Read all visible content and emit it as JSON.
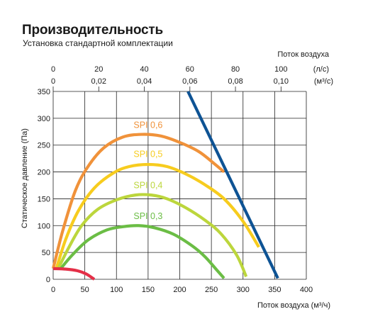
{
  "header": {
    "title": "Производительность",
    "subtitle": "Установка стандартной комплектации"
  },
  "chart_data": {
    "type": "line",
    "title": "Производительность",
    "subtitle": "Установка стандартной комплектации",
    "xlabel": "Поток воздуха (м³/ч)",
    "ylabel": "Статическое давление (Па)",
    "top_axis_label": "Поток воздуха",
    "xlim": [
      0,
      400
    ],
    "ylim": [
      0,
      350
    ],
    "x_ticks": [
      "0",
      "50",
      "100",
      "150",
      "200",
      "250",
      "300",
      "350",
      "400"
    ],
    "y_ticks": [
      "0",
      "50",
      "100",
      "150",
      "200",
      "250",
      "300",
      "350"
    ],
    "top_ticks_ls": {
      "unit": "(л/с)",
      "values": [
        0,
        20,
        40,
        60,
        80,
        100
      ],
      "labels": [
        "0",
        "20",
        "40",
        "60",
        "80",
        "100"
      ]
    },
    "top_ticks_m3s": {
      "unit": "(м³/с)",
      "values": [
        0,
        0.02,
        0.04,
        0.06,
        0.08,
        0.1
      ],
      "labels": [
        "0",
        "0,02",
        "0,04",
        "0,06",
        "0,08",
        "0,10"
      ]
    },
    "grid": true,
    "series": [
      {
        "name": "SPI 0,6",
        "color": "#f0923a",
        "label_at": [
          150,
          282
        ],
        "points": [
          [
            0,
            20
          ],
          [
            15,
            90
          ],
          [
            35,
            165
          ],
          [
            55,
            210
          ],
          [
            80,
            245
          ],
          [
            110,
            265
          ],
          [
            140,
            270
          ],
          [
            170,
            267
          ],
          [
            200,
            255
          ],
          [
            230,
            238
          ],
          [
            255,
            215
          ],
          [
            270,
            200
          ]
        ]
      },
      {
        "name": "SPI 0,5",
        "color": "#f7cc1e",
        "label_at": [
          150,
          228
        ],
        "points": [
          [
            5,
            20
          ],
          [
            20,
            75
          ],
          [
            40,
            128
          ],
          [
            65,
            170
          ],
          [
            95,
            198
          ],
          [
            120,
            210
          ],
          [
            150,
            214
          ],
          [
            180,
            210
          ],
          [
            210,
            196
          ],
          [
            240,
            176
          ],
          [
            270,
            150
          ],
          [
            300,
            108
          ],
          [
            325,
            60
          ]
        ]
      },
      {
        "name": "SPI 0,4",
        "color": "#bcd63c",
        "label_at": [
          150,
          170
        ],
        "points": [
          [
            8,
            20
          ],
          [
            25,
            60
          ],
          [
            45,
            100
          ],
          [
            70,
            130
          ],
          [
            100,
            148
          ],
          [
            130,
            157
          ],
          [
            155,
            157
          ],
          [
            180,
            150
          ],
          [
            210,
            133
          ],
          [
            240,
            110
          ],
          [
            265,
            85
          ],
          [
            290,
            45
          ],
          [
            305,
            5
          ]
        ]
      },
      {
        "name": "SPI 0,3",
        "color": "#6bbd45",
        "label_at": [
          150,
          112
        ],
        "points": [
          [
            12,
            20
          ],
          [
            30,
            45
          ],
          [
            55,
            73
          ],
          [
            85,
            92
          ],
          [
            110,
            98
          ],
          [
            135,
            100
          ],
          [
            160,
            96
          ],
          [
            190,
            84
          ],
          [
            220,
            62
          ],
          [
            240,
            42
          ],
          [
            258,
            18
          ],
          [
            270,
            2
          ]
        ]
      },
      {
        "name": "",
        "color": "#0e5394",
        "points": [
          [
            213,
            350
          ],
          [
            355,
            2
          ]
        ]
      },
      {
        "name": "",
        "color": "#e42f47",
        "points": [
          [
            0,
            20
          ],
          [
            20,
            19
          ],
          [
            38,
            16
          ],
          [
            52,
            10
          ],
          [
            65,
            0
          ]
        ]
      }
    ]
  }
}
